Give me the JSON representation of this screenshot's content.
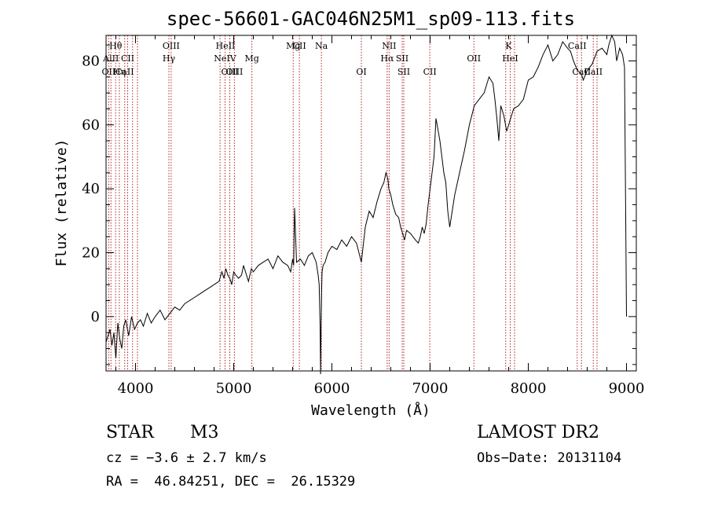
{
  "chart_data": {
    "type": "line",
    "title": "spec-56601-GAC046N25M1_sp09-113.fits",
    "xlabel": "Wavelength (Å)",
    "ylabel": "Flux (relative)",
    "xlim": [
      3700,
      9100
    ],
    "ylim": [
      -17,
      88
    ],
    "xticks": [
      4000,
      5000,
      6000,
      7000,
      8000,
      9000
    ],
    "yticks": [
      0,
      20,
      40,
      60,
      80
    ],
    "grid": false,
    "series": [
      {
        "x": [
          3700,
          3740,
          3760,
          3780,
          3800,
          3820,
          3840,
          3860,
          3880,
          3900,
          3930,
          3960,
          3990,
          4020,
          4050,
          4080,
          4120,
          4160,
          4200,
          4250,
          4300,
          4350,
          4400,
          4450,
          4500,
          4550,
          4600,
          4650,
          4700,
          4750,
          4800,
          4850,
          4880,
          4900,
          4920,
          4940,
          4960,
          4980,
          5000,
          5020,
          5050,
          5080,
          5100,
          5150,
          5180,
          5200,
          5250,
          5300,
          5350,
          5400,
          5450,
          5500,
          5550,
          5580,
          5600,
          5610,
          5620,
          5640,
          5680,
          5720,
          5760,
          5800,
          5840,
          5860,
          5870,
          5880,
          5885,
          5890,
          5895,
          5900,
          5910,
          5930,
          5960,
          6000,
          6050,
          6100,
          6150,
          6200,
          6250,
          6300,
          6340,
          6380,
          6420,
          6460,
          6500,
          6530,
          6550,
          6570,
          6580,
          6600,
          6620,
          6650,
          6680,
          6700,
          6720,
          6740,
          6760,
          6800,
          6850,
          6880,
          6900,
          6920,
          6940,
          6960,
          6980,
          7000,
          7020,
          7040,
          7060,
          7100,
          7140,
          7160,
          7180,
          7200,
          7250,
          7300,
          7350,
          7400,
          7450,
          7500,
          7550,
          7600,
          7620,
          7640,
          7660,
          7680,
          7700,
          7720,
          7750,
          7780,
          7800,
          7850,
          7900,
          7950,
          8000,
          8050,
          8100,
          8150,
          8200,
          8250,
          8300,
          8350,
          8400,
          8430,
          8460,
          8500,
          8540,
          8560,
          8600,
          8650,
          8700,
          8750,
          8800,
          8820,
          8850,
          8880,
          8900,
          8930,
          8960,
          8980,
          9000
        ],
        "y": [
          -8,
          -4,
          -9,
          -5,
          -13,
          -2,
          -7,
          -10,
          -3,
          -1,
          -6,
          0,
          -4,
          -2,
          -1,
          -3,
          1,
          -2,
          0,
          2,
          -1,
          1,
          3,
          2,
          4,
          5,
          6,
          7,
          8,
          9,
          10,
          11,
          14,
          12,
          15,
          13,
          12,
          10,
          14,
          13,
          12,
          13,
          16,
          11,
          15,
          14,
          16,
          17,
          18,
          15,
          19,
          17,
          16,
          14,
          18,
          16,
          34,
          17,
          18,
          16,
          19,
          20,
          17,
          13,
          10,
          -3,
          -18,
          -2,
          8,
          14,
          16,
          17,
          20,
          22,
          21,
          24,
          22,
          25,
          23,
          17,
          28,
          33,
          31,
          36,
          40,
          42,
          45,
          43,
          40,
          38,
          35,
          32,
          31,
          28,
          26,
          24,
          27,
          26,
          24,
          23,
          25,
          28,
          26,
          29,
          35,
          40,
          45,
          50,
          62,
          55,
          45,
          42,
          33,
          28,
          38,
          45,
          52,
          60,
          66,
          68,
          70,
          75,
          74,
          73,
          68,
          62,
          55,
          66,
          63,
          58,
          60,
          65,
          66,
          68,
          74,
          75,
          78,
          82,
          85,
          80,
          82,
          86,
          84,
          83,
          80,
          77,
          76,
          74,
          77,
          79,
          83,
          84,
          82,
          85,
          88,
          86,
          80,
          84,
          82,
          78,
          0
        ]
      }
    ],
    "spectral_lines": [
      {
        "label": "Hθ",
        "x": 3798,
        "row": 0
      },
      {
        "label": "AlII",
        "x": 3750,
        "row": 1
      },
      {
        "label": "CII",
        "x": 3920,
        "row": 1
      },
      {
        "label": "OII",
        "x": 3727,
        "row": 2
      },
      {
        "label": "Hη",
        "x": 3835,
        "row": 2
      },
      {
        "label": "CaII",
        "x": 3890,
        "row": 2
      },
      {
        "label": "OIII",
        "x": 4363,
        "row": 0
      },
      {
        "label": "Hγ",
        "x": 4340,
        "row": 1
      },
      {
        "label": "HeII",
        "x": 4916,
        "row": 0
      },
      {
        "label": "NeIV",
        "x": 4912,
        "row": 1
      },
      {
        "label": "OIII",
        "x": 4960,
        "row": 2
      },
      {
        "label": "OIII",
        "x": 5007,
        "row": 2
      },
      {
        "label": "Mg",
        "x": 5185,
        "row": 1
      },
      {
        "label": "Mg",
        "x": 5606,
        "row": 0
      },
      {
        "label": "CII",
        "x": 5669,
        "row": 0
      },
      {
        "label": "Na",
        "x": 5893,
        "row": 0
      },
      {
        "label": "NII",
        "x": 6583,
        "row": 0
      },
      {
        "label": "Hα",
        "x": 6563,
        "row": 1
      },
      {
        "label": "SII",
        "x": 6716,
        "row": 1
      },
      {
        "label": "OI",
        "x": 6300,
        "row": 2
      },
      {
        "label": "SII",
        "x": 6732,
        "row": 2
      },
      {
        "label": "CII",
        "x": 6997,
        "row": 2
      },
      {
        "label": "K",
        "x": 7800,
        "row": 0
      },
      {
        "label": "OII",
        "x": 7446,
        "row": 1
      },
      {
        "label": "HeI",
        "x": 7816,
        "row": 1
      },
      {
        "label": "CaII",
        "x": 8498,
        "row": 0
      },
      {
        "label": "CaII",
        "x": 8542,
        "row": 2
      },
      {
        "label": "CaII",
        "x": 8662,
        "row": 2
      }
    ],
    "line_markers_x": [
      3727,
      3750,
      3798,
      3835,
      3890,
      3920,
      3970,
      4020,
      4340,
      4363,
      4861,
      4912,
      4960,
      5007,
      5185,
      5606,
      5669,
      5893,
      6300,
      6563,
      6583,
      6716,
      6732,
      6997,
      7446,
      7770,
      7816,
      7860,
      8498,
      8542,
      8662,
      8700
    ]
  },
  "info": {
    "object_class": "STAR",
    "subclass": "M3",
    "survey": "LAMOST DR2",
    "cz": "cz = −3.6 ± 2.7 km/s",
    "obs_date": "Obs−Date: 20131104",
    "coords": "RA =  46.84251, DEC =  26.15329"
  }
}
